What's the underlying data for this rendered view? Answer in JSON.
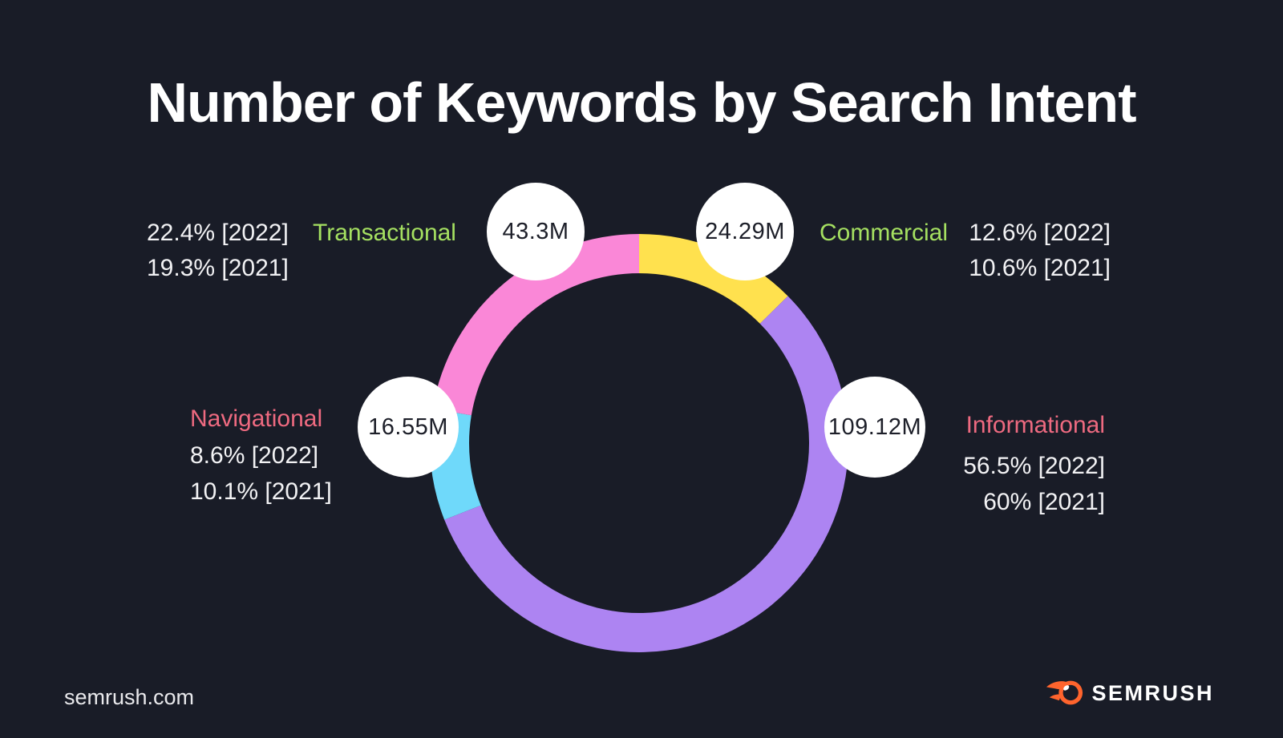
{
  "title": "Number of Keywords by Search Intent",
  "colors": {
    "background": "#191c27",
    "label_green": "#a5e061",
    "label_rose": "#ee6a80",
    "bubble_fill": "#ffffff",
    "bubble_text": "#1d1f29",
    "brand_orange": "#ff642d",
    "body_text": "#f2f2f4"
  },
  "chart_data": {
    "type": "pie",
    "variant": "donut",
    "title": "Number of Keywords by Search Intent",
    "direction": "clockwise",
    "start_angle_deg": 0,
    "legend_position": "around-ring",
    "segments": [
      {
        "label": "Commercial",
        "value_label": "24.29M",
        "value_millions": 24.29,
        "pct_2022": 12.6,
        "pct_2021": 10.6,
        "color": "#ffe14e"
      },
      {
        "label": "Informational",
        "value_label": "109.12M",
        "value_millions": 109.12,
        "pct_2022": 56.5,
        "pct_2021": 60,
        "color": "#ad84f2"
      },
      {
        "label": "Navigational",
        "value_label": "16.55M",
        "value_millions": 16.55,
        "pct_2022": 8.6,
        "pct_2021": 10.1,
        "color": "#6fd9fa"
      },
      {
        "label": "Transactional",
        "value_label": "43.3M",
        "value_millions": 43.3,
        "pct_2022": 22.4,
        "pct_2021": 19.3,
        "color": "#fa87d7"
      }
    ]
  },
  "callouts": {
    "transactional": {
      "label": "Transactional",
      "value": "43.3M",
      "stat_2022": "22.4% [2022]",
      "stat_2021": "19.3% [2021]"
    },
    "commercial": {
      "label": "Commercial",
      "value": "24.29M",
      "stat_2022": "12.6% [2022]",
      "stat_2021": "10.6% [2021]"
    },
    "navigational": {
      "label": "Navigational",
      "value": "16.55M",
      "stat_2022": "8.6% [2022]",
      "stat_2021": "10.1% [2021]"
    },
    "informational": {
      "label": "Informational",
      "value": "109.12M",
      "stat_2022": "56.5% [2022]",
      "stat_2021": "60% [2021]"
    }
  },
  "footer": {
    "site": "semrush.com",
    "brand": "SEMRUSH"
  }
}
